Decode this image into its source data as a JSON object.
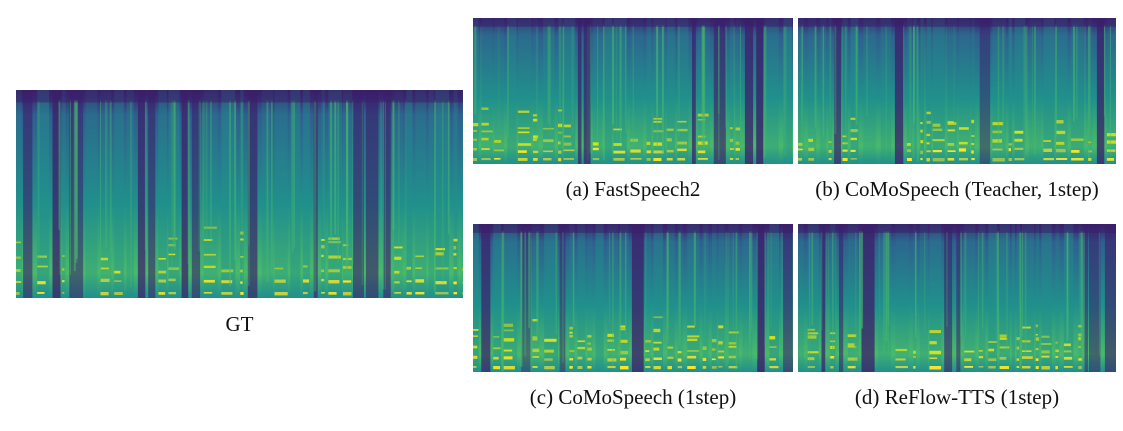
{
  "palette": {
    "low": "#3b1f6b",
    "mid_low": "#2f5f8f",
    "mid": "#21908c",
    "mid_high": "#49b96b",
    "high": "#d8e219",
    "peak": "#fde725"
  },
  "panels": [
    {
      "id": "gt",
      "caption": "GT"
    },
    {
      "id": "a",
      "caption": "(a) FastSpeech2"
    },
    {
      "id": "b",
      "caption": "(b) CoMoSpeech (Teacher, 1step)"
    },
    {
      "id": "c",
      "caption": "(c) CoMoSpeech (1step)"
    },
    {
      "id": "d",
      "caption": "(d) ReFlow-TTS (1step)"
    }
  ]
}
